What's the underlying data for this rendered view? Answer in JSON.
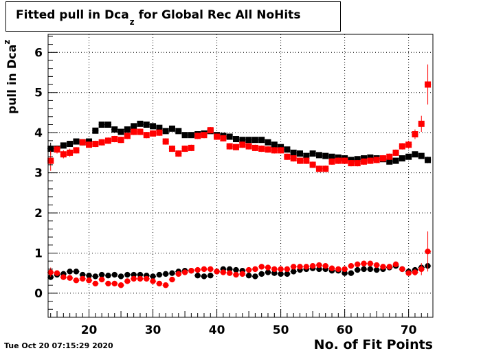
{
  "title": {
    "main": "Fitted pull in Dca",
    "subscript": "z",
    "rest": "for Global Rec All NoHits"
  },
  "timestamp": "Tue Oct 20 07:15:29 2020",
  "chart_data": {
    "type": "scatter",
    "title": "Fitted pull in Dca_z for Global Rec All NoHits",
    "xlabel": "No. of Fit Points",
    "ylabel": "pull in Dca_z",
    "ylabel_main": "pull in Dca",
    "ylabel_sub": "z",
    "xlim": [
      13.6,
      73.8
    ],
    "ylim": [
      -0.6,
      6.45
    ],
    "xticks": [
      20,
      30,
      40,
      50,
      60,
      70
    ],
    "yticks": [
      0,
      1,
      2,
      3,
      4,
      5,
      6
    ],
    "grid": true,
    "x": [
      14,
      15,
      16,
      17,
      18,
      19,
      20,
      21,
      22,
      23,
      24,
      25,
      26,
      27,
      28,
      29,
      30,
      31,
      32,
      33,
      34,
      35,
      36,
      37,
      38,
      39,
      40,
      41,
      42,
      43,
      44,
      45,
      46,
      47,
      48,
      49,
      50,
      51,
      52,
      53,
      54,
      55,
      56,
      57,
      58,
      59,
      60,
      61,
      62,
      63,
      64,
      65,
      66,
      67,
      68,
      69,
      70,
      71,
      72,
      73
    ],
    "series": [
      {
        "name": "",
        "color": "#000000",
        "marker": "square",
        "values": [
          3.6,
          3.6,
          3.68,
          3.72,
          3.78,
          3.76,
          3.78,
          4.05,
          4.2,
          4.2,
          4.08,
          4.02,
          4.08,
          4.16,
          4.22,
          4.2,
          4.16,
          4.12,
          4.04,
          4.1,
          4.04,
          3.94,
          3.94,
          3.96,
          3.98,
          4.04,
          3.94,
          3.92,
          3.9,
          3.84,
          3.82,
          3.82,
          3.82,
          3.82,
          3.76,
          3.7,
          3.64,
          3.58,
          3.5,
          3.48,
          3.42,
          3.48,
          3.44,
          3.42,
          3.4,
          3.38,
          3.36,
          3.32,
          3.34,
          3.36,
          3.38,
          3.36,
          3.34,
          3.28,
          3.3,
          3.36,
          3.4,
          3.46,
          3.42,
          3.32
        ],
        "errors": [
          0.15,
          0.08,
          0.07,
          0.06,
          0.06,
          0.06,
          0.06,
          0.06,
          0.06,
          0.06,
          0.06,
          0.06,
          0.06,
          0.06,
          0.06,
          0.06,
          0.06,
          0.06,
          0.06,
          0.06,
          0.06,
          0.06,
          0.06,
          0.06,
          0.06,
          0.06,
          0.06,
          0.06,
          0.06,
          0.06,
          0.06,
          0.06,
          0.06,
          0.06,
          0.06,
          0.06,
          0.06,
          0.06,
          0.06,
          0.06,
          0.06,
          0.06,
          0.06,
          0.06,
          0.06,
          0.06,
          0.06,
          0.06,
          0.06,
          0.06,
          0.06,
          0.06,
          0.06,
          0.06,
          0.06,
          0.06,
          0.06,
          0.06,
          0.06,
          0.08
        ]
      },
      {
        "name": "",
        "color": "#ff0000",
        "marker": "square",
        "values": [
          3.3,
          3.58,
          3.46,
          3.5,
          3.56,
          3.76,
          3.7,
          3.72,
          3.76,
          3.8,
          3.84,
          3.82,
          3.92,
          4.02,
          4.02,
          3.94,
          3.98,
          4.0,
          3.78,
          3.6,
          3.48,
          3.6,
          3.62,
          3.92,
          3.94,
          4.06,
          3.9,
          3.86,
          3.66,
          3.64,
          3.7,
          3.66,
          3.62,
          3.6,
          3.58,
          3.56,
          3.56,
          3.4,
          3.36,
          3.3,
          3.3,
          3.2,
          3.1,
          3.1,
          3.28,
          3.3,
          3.3,
          3.24,
          3.24,
          3.28,
          3.3,
          3.32,
          3.36,
          3.4,
          3.5,
          3.66,
          3.7,
          3.96,
          4.22,
          5.2
        ],
        "errors": [
          0.25,
          0.1,
          0.1,
          0.1,
          0.08,
          0.08,
          0.08,
          0.08,
          0.08,
          0.08,
          0.08,
          0.08,
          0.08,
          0.08,
          0.08,
          0.08,
          0.08,
          0.08,
          0.08,
          0.08,
          0.08,
          0.08,
          0.08,
          0.08,
          0.08,
          0.08,
          0.08,
          0.08,
          0.08,
          0.08,
          0.08,
          0.08,
          0.08,
          0.08,
          0.08,
          0.08,
          0.08,
          0.08,
          0.08,
          0.08,
          0.08,
          0.08,
          0.08,
          0.08,
          0.08,
          0.08,
          0.08,
          0.08,
          0.08,
          0.08,
          0.08,
          0.08,
          0.08,
          0.08,
          0.08,
          0.08,
          0.1,
          0.12,
          0.2,
          0.5
        ]
      },
      {
        "name": "",
        "color": "#000000",
        "marker": "circle",
        "values": [
          0.4,
          0.46,
          0.48,
          0.54,
          0.54,
          0.46,
          0.44,
          0.42,
          0.46,
          0.44,
          0.46,
          0.42,
          0.46,
          0.46,
          0.46,
          0.44,
          0.42,
          0.46,
          0.48,
          0.5,
          0.54,
          0.56,
          0.56,
          0.44,
          0.42,
          0.44,
          0.54,
          0.6,
          0.6,
          0.58,
          0.56,
          0.44,
          0.42,
          0.48,
          0.52,
          0.5,
          0.48,
          0.48,
          0.54,
          0.58,
          0.6,
          0.62,
          0.6,
          0.6,
          0.56,
          0.56,
          0.5,
          0.5,
          0.58,
          0.6,
          0.6,
          0.58,
          0.6,
          0.64,
          0.68,
          0.6,
          0.54,
          0.58,
          0.64,
          0.68
        ],
        "errors": [
          0.06,
          0.04,
          0.04,
          0.04,
          0.04,
          0.04,
          0.04,
          0.04,
          0.04,
          0.04,
          0.04,
          0.04,
          0.04,
          0.04,
          0.04,
          0.04,
          0.04,
          0.04,
          0.04,
          0.04,
          0.04,
          0.04,
          0.04,
          0.04,
          0.04,
          0.04,
          0.04,
          0.04,
          0.04,
          0.04,
          0.04,
          0.04,
          0.04,
          0.04,
          0.04,
          0.04,
          0.04,
          0.04,
          0.04,
          0.04,
          0.04,
          0.04,
          0.04,
          0.04,
          0.04,
          0.04,
          0.04,
          0.04,
          0.04,
          0.04,
          0.04,
          0.04,
          0.04,
          0.04,
          0.04,
          0.04,
          0.04,
          0.05,
          0.06,
          0.08
        ]
      },
      {
        "name": "",
        "color": "#ff0000",
        "marker": "circle",
        "values": [
          0.52,
          0.5,
          0.4,
          0.38,
          0.32,
          0.36,
          0.32,
          0.24,
          0.34,
          0.24,
          0.24,
          0.2,
          0.3,
          0.36,
          0.36,
          0.36,
          0.3,
          0.24,
          0.2,
          0.34,
          0.48,
          0.52,
          0.56,
          0.58,
          0.6,
          0.6,
          0.54,
          0.52,
          0.5,
          0.46,
          0.48,
          0.58,
          0.6,
          0.66,
          0.64,
          0.6,
          0.6,
          0.6,
          0.66,
          0.66,
          0.66,
          0.68,
          0.7,
          0.68,
          0.62,
          0.6,
          0.6,
          0.68,
          0.72,
          0.74,
          0.74,
          0.7,
          0.66,
          0.66,
          0.72,
          0.6,
          0.5,
          0.52,
          0.6,
          1.04
        ],
        "errors": [
          0.12,
          0.06,
          0.05,
          0.05,
          0.05,
          0.05,
          0.05,
          0.05,
          0.05,
          0.05,
          0.05,
          0.05,
          0.05,
          0.05,
          0.05,
          0.05,
          0.05,
          0.05,
          0.05,
          0.05,
          0.05,
          0.05,
          0.05,
          0.05,
          0.05,
          0.05,
          0.05,
          0.05,
          0.05,
          0.05,
          0.05,
          0.05,
          0.05,
          0.05,
          0.05,
          0.05,
          0.05,
          0.05,
          0.05,
          0.05,
          0.05,
          0.05,
          0.05,
          0.05,
          0.05,
          0.05,
          0.05,
          0.05,
          0.05,
          0.05,
          0.05,
          0.05,
          0.05,
          0.05,
          0.05,
          0.05,
          0.06,
          0.08,
          0.15,
          0.5
        ]
      }
    ]
  }
}
